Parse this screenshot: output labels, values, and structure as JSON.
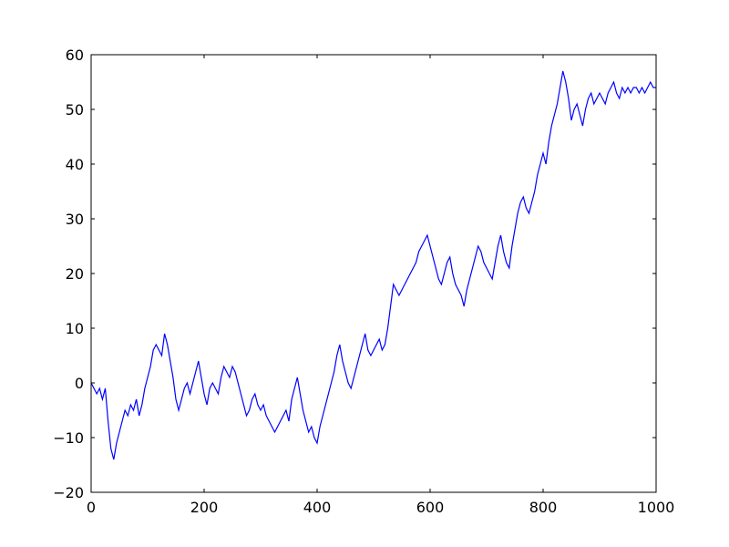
{
  "chart_data": {
    "type": "line",
    "title": "",
    "xlabel": "",
    "ylabel": "",
    "xlim": [
      0,
      1000
    ],
    "ylim": [
      -20,
      60
    ],
    "x_ticks": [
      0,
      200,
      400,
      600,
      800,
      1000
    ],
    "y_ticks": [
      -20,
      -10,
      0,
      10,
      20,
      30,
      40,
      50,
      60
    ],
    "x_tick_labels": [
      "0",
      "200",
      "400",
      "600",
      "800",
      "1000"
    ],
    "y_tick_labels": [
      "−20",
      "−10",
      "0",
      "10",
      "20",
      "30",
      "40",
      "50",
      "60"
    ],
    "grid": false,
    "legend": "none",
    "series": [
      {
        "color": "#0000ff",
        "x": [
          0,
          5,
          10,
          15,
          20,
          25,
          30,
          35,
          40,
          45,
          50,
          55,
          60,
          65,
          70,
          75,
          80,
          85,
          90,
          95,
          100,
          105,
          110,
          115,
          120,
          125,
          130,
          135,
          140,
          145,
          150,
          155,
          160,
          165,
          170,
          175,
          180,
          185,
          190,
          195,
          200,
          205,
          210,
          215,
          220,
          225,
          230,
          235,
          240,
          245,
          250,
          255,
          260,
          265,
          270,
          275,
          280,
          285,
          290,
          295,
          300,
          305,
          310,
          315,
          320,
          325,
          330,
          335,
          340,
          345,
          350,
          355,
          360,
          365,
          370,
          375,
          380,
          385,
          390,
          395,
          400,
          405,
          410,
          415,
          420,
          425,
          430,
          435,
          440,
          445,
          450,
          455,
          460,
          465,
          470,
          475,
          480,
          485,
          490,
          495,
          500,
          505,
          510,
          515,
          520,
          525,
          530,
          535,
          540,
          545,
          550,
          555,
          560,
          565,
          570,
          575,
          580,
          585,
          590,
          595,
          600,
          605,
          610,
          615,
          620,
          625,
          630,
          635,
          640,
          645,
          650,
          655,
          660,
          665,
          670,
          675,
          680,
          685,
          690,
          695,
          700,
          705,
          710,
          715,
          720,
          725,
          730,
          735,
          740,
          745,
          750,
          755,
          760,
          765,
          770,
          775,
          780,
          785,
          790,
          795,
          800,
          805,
          810,
          815,
          820,
          825,
          830,
          835,
          840,
          845,
          850,
          855,
          860,
          865,
          870,
          875,
          880,
          885,
          890,
          895,
          900,
          905,
          910,
          915,
          920,
          925,
          930,
          935,
          940,
          945,
          950,
          955,
          960,
          965,
          970,
          975,
          980,
          985,
          990,
          995,
          1000
        ],
        "y": [
          0,
          -1,
          -2,
          -1,
          -3,
          -1,
          -7,
          -12,
          -14,
          -11,
          -9,
          -7,
          -5,
          -6,
          -4,
          -5,
          -3,
          -6,
          -4,
          -1,
          1,
          3,
          6,
          7,
          6,
          5,
          9,
          7,
          4,
          1,
          -3,
          -5,
          -3,
          -1,
          0,
          -2,
          0,
          2,
          4,
          1,
          -2,
          -4,
          -1,
          0,
          -1,
          -2,
          1,
          3,
          2,
          1,
          3,
          2,
          0,
          -2,
          -4,
          -6,
          -5,
          -3,
          -2,
          -4,
          -5,
          -4,
          -6,
          -7,
          -8,
          -9,
          -8,
          -7,
          -6,
          -5,
          -7,
          -3,
          -1,
          1,
          -2,
          -5,
          -7,
          -9,
          -8,
          -10,
          -11,
          -8,
          -6,
          -4,
          -2,
          0,
          2,
          5,
          7,
          4,
          2,
          0,
          -1,
          1,
          3,
          5,
          7,
          9,
          6,
          5,
          6,
          7,
          8,
          6,
          7,
          10,
          14,
          18,
          17,
          16,
          17,
          18,
          19,
          20,
          21,
          22,
          24,
          25,
          26,
          27,
          25,
          23,
          21,
          19,
          18,
          20,
          22,
          23,
          20,
          18,
          17,
          16,
          14,
          17,
          19,
          21,
          23,
          25,
          24,
          22,
          21,
          20,
          19,
          22,
          25,
          27,
          24,
          22,
          21,
          25,
          28,
          31,
          33,
          34,
          32,
          31,
          33,
          35,
          38,
          40,
          42,
          40,
          44,
          47,
          49,
          51,
          54,
          57,
          55,
          52,
          48,
          50,
          51,
          49,
          47,
          50,
          52,
          53,
          51,
          52,
          53,
          52,
          51,
          53,
          54,
          55,
          53,
          52,
          54,
          53,
          54,
          53,
          54,
          54,
          53,
          54,
          53,
          54,
          55,
          54,
          54
        ]
      }
    ]
  }
}
